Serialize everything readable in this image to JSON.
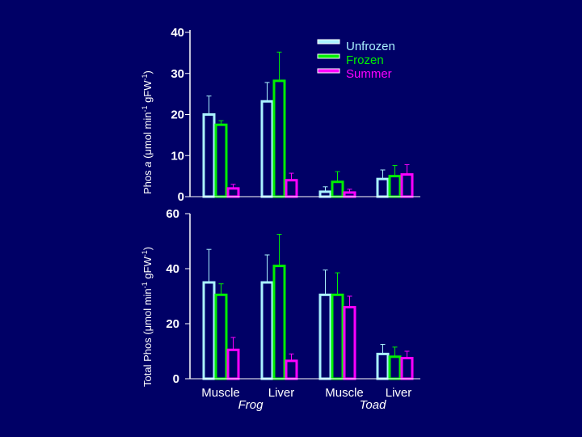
{
  "colors": {
    "background": "#000066",
    "axis": "#ffffff",
    "unfrozen": "#aaf2ff",
    "frozen": "#00ee00",
    "summer": "#ff00ff"
  },
  "chart_data": {
    "type": "bar",
    "legend": [
      "Unfrozen",
      "Frozen",
      "Summer"
    ],
    "legend_position": "top-right",
    "categories": [
      "Muscle",
      "Liver",
      "Muscle",
      "Liver"
    ],
    "groups": [
      "Frog",
      "Toad"
    ],
    "panels": [
      {
        "name": "phos-a",
        "ylabel_parts": [
          "Phos ",
          "a",
          " (",
          "μ",
          "mol min",
          "-1",
          " gFW",
          "-1",
          ")"
        ],
        "ylim": [
          0,
          40
        ],
        "yticks": [
          "0",
          "10",
          "20",
          "30",
          "40"
        ],
        "series": [
          {
            "name": "Unfrozen",
            "values": [
              20,
              23.2,
              1.2,
              4.3
            ],
            "errors": [
              4.5,
              4.6,
              1.2,
              2.2
            ]
          },
          {
            "name": "Frozen",
            "values": [
              17.5,
              28.2,
              3.6,
              5
            ],
            "errors": [
              1,
              7,
              2.5,
              2.6
            ]
          },
          {
            "name": "Summer",
            "values": [
              2,
              4,
              1,
              5.4
            ],
            "errors": [
              1,
              1.7,
              0.8,
              2.4
            ]
          }
        ]
      },
      {
        "name": "total-phos",
        "ylabel_parts": [
          "Total Phos (",
          "μ",
          "mol min",
          "-1",
          " gFW",
          "-1",
          ")"
        ],
        "ylim": [
          0,
          60
        ],
        "yticks": [
          "0",
          "20",
          "40",
          "60"
        ],
        "series": [
          {
            "name": "Unfrozen",
            "values": [
              35,
              35,
              30.5,
              9
            ],
            "errors": [
              12,
              10,
              9,
              3.5
            ]
          },
          {
            "name": "Frozen",
            "values": [
              30.5,
              41,
              30.5,
              8
            ],
            "errors": [
              4,
              11.5,
              8,
              3.5
            ]
          },
          {
            "name": "Summer",
            "values": [
              10.5,
              6.5,
              26,
              7.5
            ],
            "errors": [
              4.5,
              2.5,
              4,
              2.5
            ]
          }
        ]
      }
    ]
  }
}
